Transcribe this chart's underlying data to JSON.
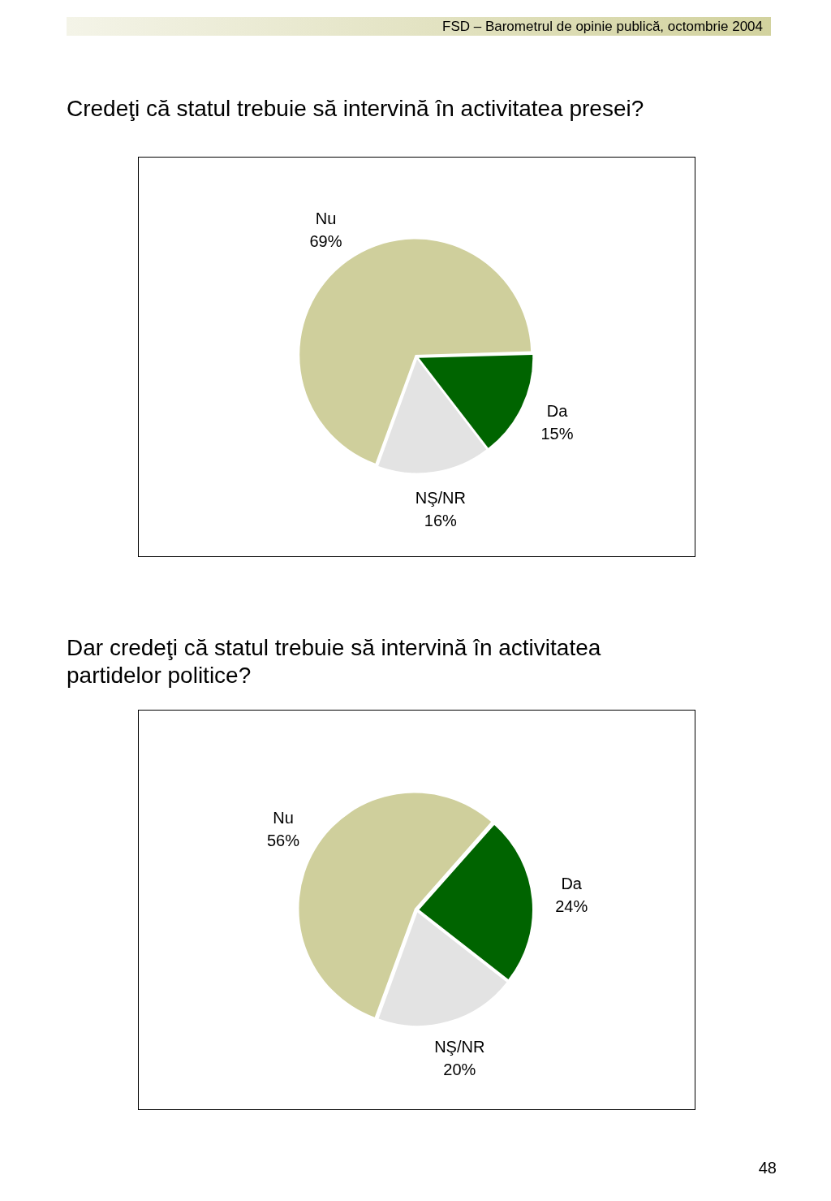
{
  "chart_data": [
    {
      "type": "pie",
      "title": "Credeţi că statul trebuie să intervină în activitatea presei?",
      "categories": [
        "Nu",
        "Da",
        "NŞ/NR"
      ],
      "values": [
        69,
        15,
        16
      ],
      "value_labels": [
        "69%",
        "15%",
        "16%"
      ],
      "colors": [
        "#cfcf9c",
        "#006400",
        "#e3e3e3"
      ],
      "annotations": [
        "FSD – Barometrul de opinie publică, octombrie 2004"
      ]
    },
    {
      "type": "pie",
      "title": "Dar credeţi că statul trebuie să intervină în activitatea partidelor politice?",
      "categories": [
        "Nu",
        "Da",
        "NŞ/NR"
      ],
      "values": [
        56,
        24,
        20
      ],
      "value_labels": [
        "56%",
        "24%",
        "20%"
      ],
      "colors": [
        "#cfcf9c",
        "#006400",
        "#e3e3e3"
      ],
      "annotations": [
        "48"
      ]
    }
  ]
}
